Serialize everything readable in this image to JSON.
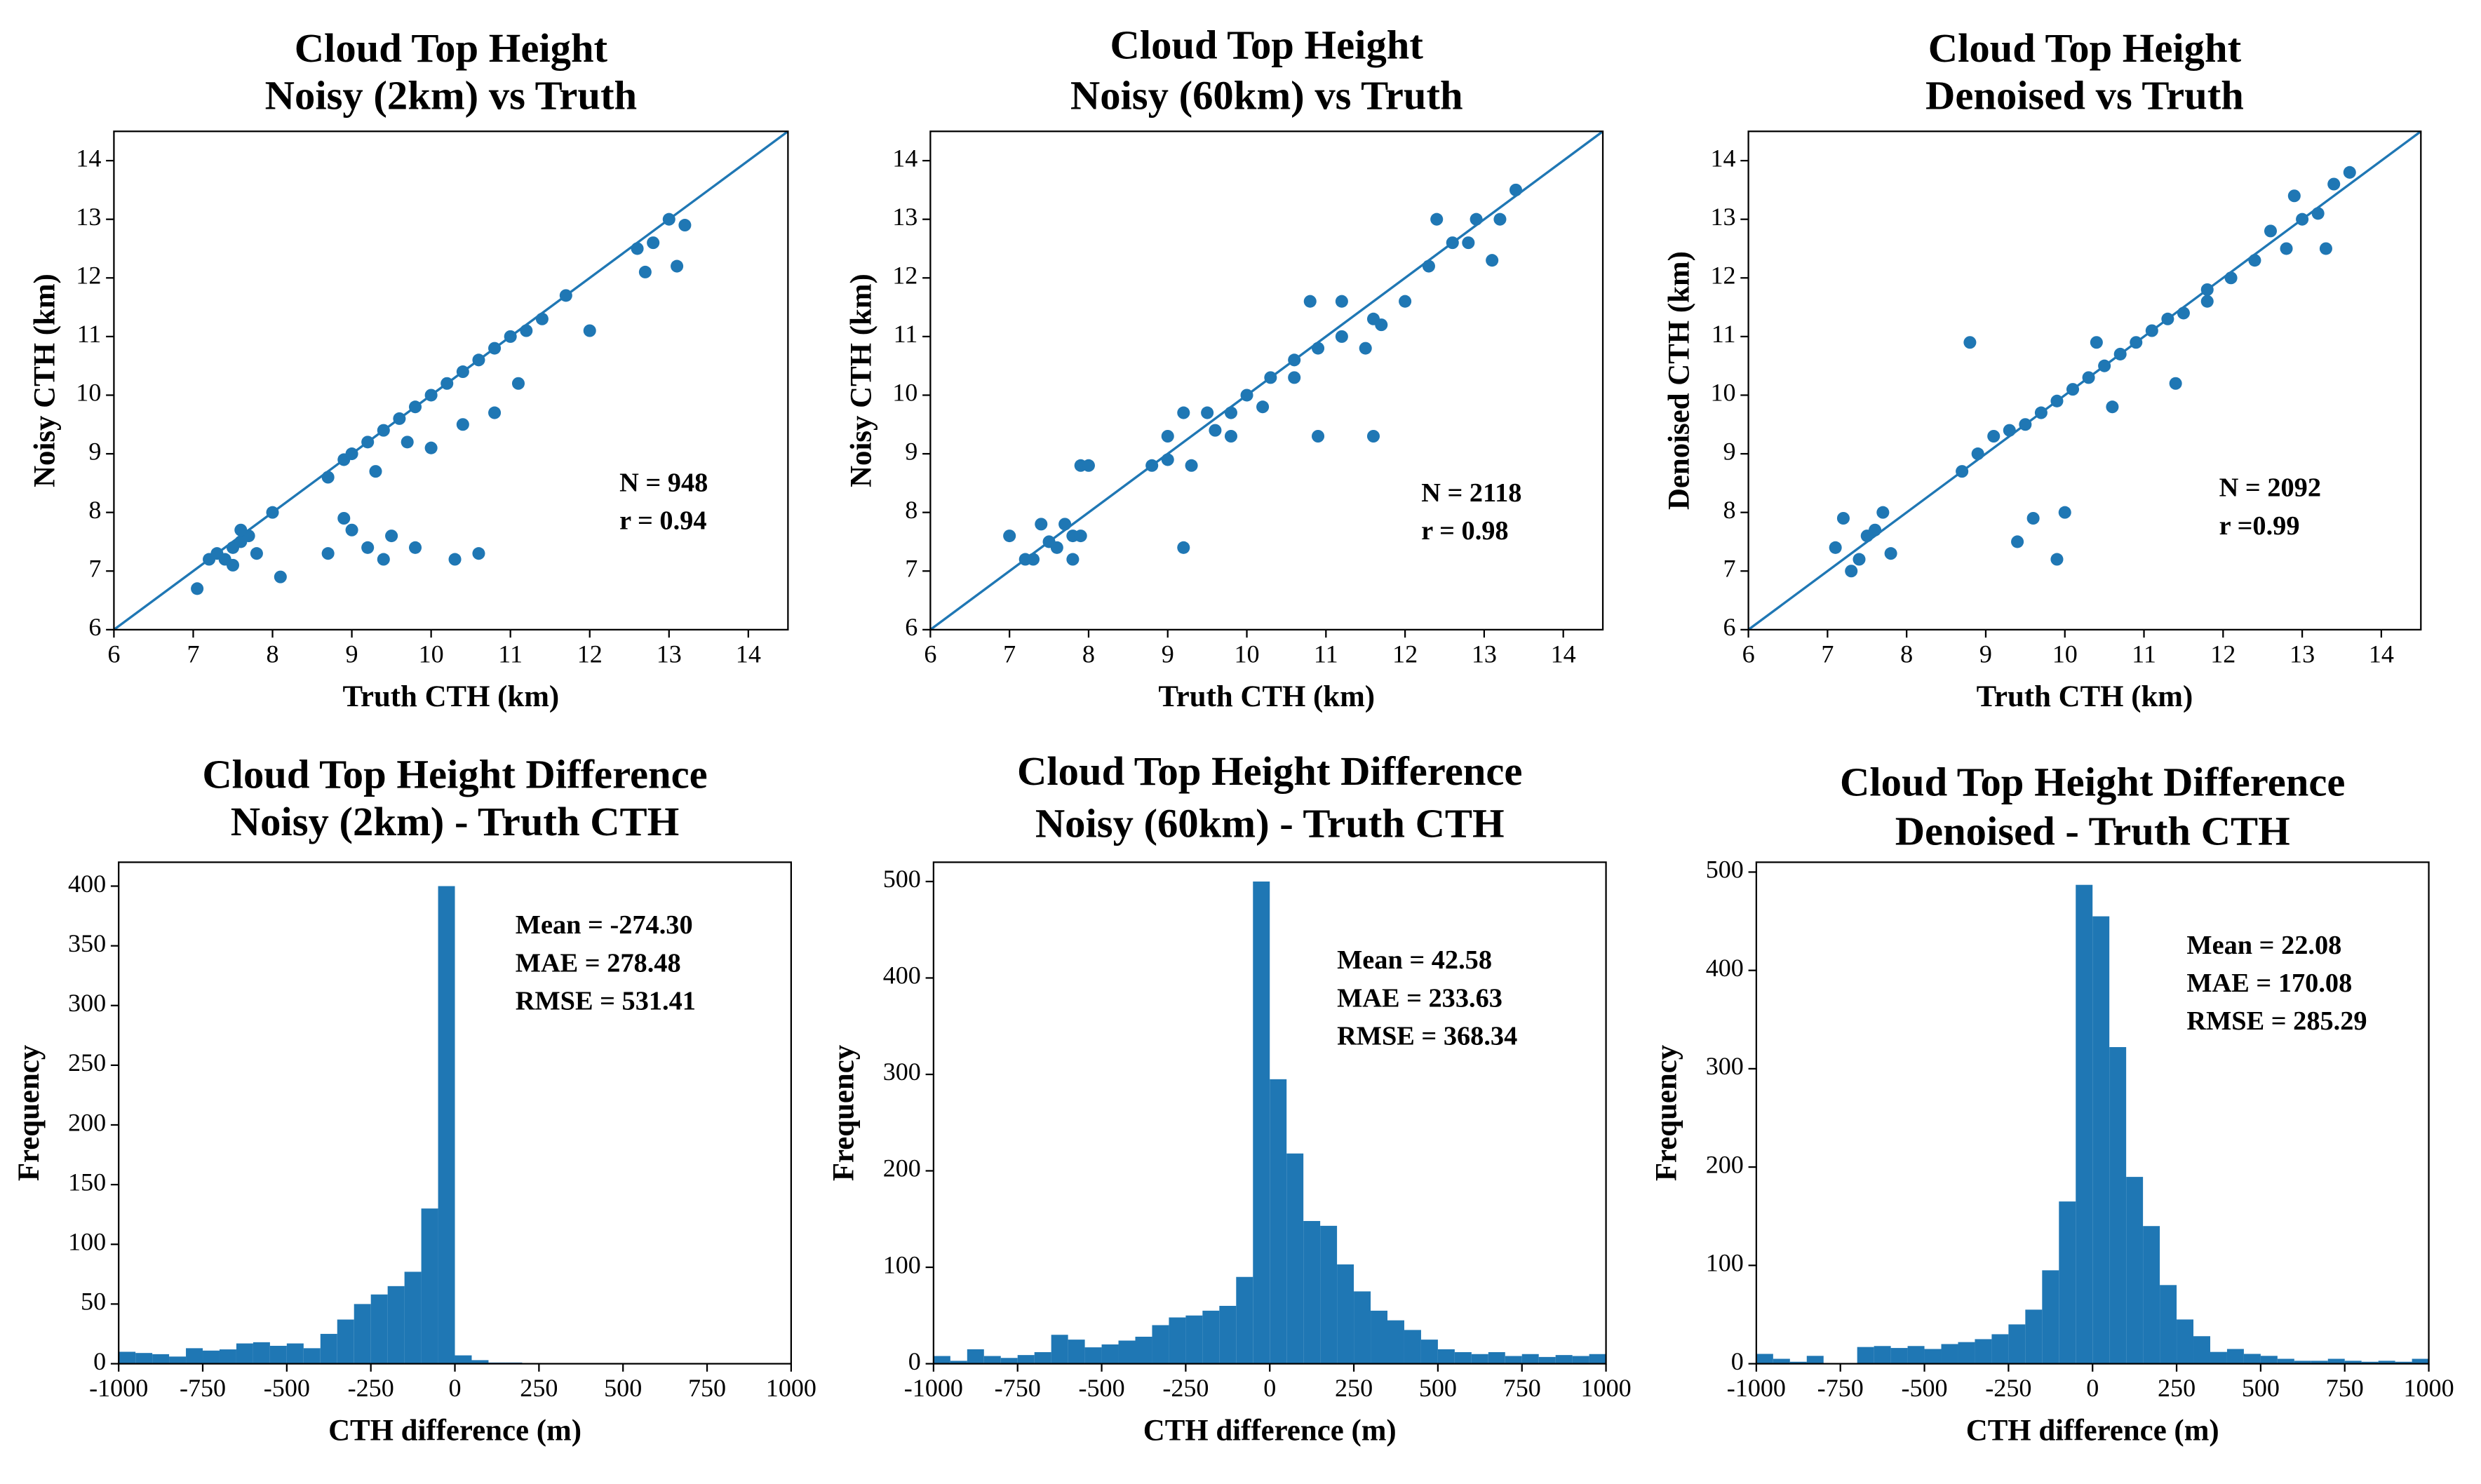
{
  "chart_data": [
    {
      "type": "scatter",
      "title": [
        "Cloud Top Height",
        "Noisy (2km) vs Truth"
      ],
      "xlabel": "Truth CTH (km)",
      "ylabel": "Noisy CTH (km)",
      "color": "#1f77b4",
      "identity_line": true,
      "xlim": [
        6,
        14.5
      ],
      "ylim": [
        6,
        14.5
      ],
      "xticks": [
        6,
        7,
        8,
        9,
        10,
        11,
        12,
        13,
        14
      ],
      "yticks": [
        6,
        7,
        8,
        9,
        10,
        11,
        12,
        13,
        14
      ],
      "annotations": [
        "N = 948",
        "r = 0.94"
      ],
      "x": [
        7.05,
        7.2,
        7.3,
        7.4,
        7.5,
        7.6,
        7.7,
        7.8,
        7.5,
        7.6,
        8.0,
        8.1,
        8.7,
        8.9,
        9.0,
        9.2,
        9.4,
        9.6,
        9.8,
        10.0,
        10.2,
        10.4,
        10.6,
        10.8,
        11.0,
        11.2,
        11.4,
        11.7,
        12.0,
        9.3,
        9.7,
        10.0,
        10.4,
        10.8,
        11.1,
        8.7,
        8.9,
        9.2,
        9.5,
        9.8,
        10.3,
        10.6,
        9.0,
        9.4,
        12.6,
        12.8,
        13.0,
        13.2,
        13.1,
        12.7
      ],
      "y": [
        6.7,
        7.2,
        7.3,
        7.2,
        7.4,
        7.5,
        7.6,
        7.3,
        7.1,
        7.7,
        8.0,
        6.9,
        8.6,
        8.9,
        9.0,
        9.2,
        9.4,
        9.6,
        9.8,
        10.0,
        10.2,
        10.4,
        10.6,
        10.8,
        11.0,
        11.1,
        11.3,
        11.7,
        11.1,
        8.7,
        9.2,
        9.1,
        9.5,
        9.7,
        10.2,
        7.3,
        7.9,
        7.4,
        7.6,
        7.4,
        7.2,
        7.3,
        7.7,
        7.2,
        12.5,
        12.6,
        13.0,
        12.9,
        12.2,
        12.1
      ]
    },
    {
      "type": "scatter",
      "title": [
        "Cloud Top Height",
        "Noisy (60km) vs Truth"
      ],
      "xlabel": "Truth CTH (km)",
      "ylabel": "Noisy CTH (km)",
      "color": "#1f77b4",
      "identity_line": true,
      "xlim": [
        6,
        14.5
      ],
      "ylim": [
        6,
        14.5
      ],
      "xticks": [
        6,
        7,
        8,
        9,
        10,
        11,
        12,
        13,
        14
      ],
      "yticks": [
        6,
        7,
        8,
        9,
        10,
        11,
        12,
        13,
        14
      ],
      "annotations": [
        "N = 2118",
        "r = 0.98"
      ],
      "x": [
        7.0,
        7.2,
        7.4,
        7.6,
        7.8,
        7.3,
        7.5,
        7.7,
        7.9,
        7.9,
        8.0,
        8.8,
        9.0,
        9.2,
        9.5,
        9.8,
        9.0,
        9.3,
        9.6,
        10.0,
        10.3,
        10.6,
        9.8,
        10.2,
        10.6,
        10.9,
        11.2,
        11.6,
        10.8,
        11.2,
        11.5,
        11.7,
        12.0,
        12.3,
        12.6,
        12.9,
        13.2,
        13.4,
        12.4,
        12.8,
        13.1,
        9.2,
        10.9,
        11.6,
        7.8
      ],
      "y": [
        7.6,
        7.2,
        7.8,
        7.4,
        7.6,
        7.2,
        7.5,
        7.8,
        7.6,
        8.8,
        8.8,
        8.8,
        9.3,
        9.7,
        9.7,
        9.7,
        8.9,
        8.8,
        9.4,
        10.0,
        10.3,
        10.6,
        9.3,
        9.8,
        10.3,
        10.8,
        11.0,
        11.3,
        11.6,
        11.6,
        10.8,
        11.2,
        11.6,
        12.2,
        12.6,
        13.0,
        13.0,
        13.5,
        13.0,
        12.6,
        12.3,
        7.4,
        9.3,
        9.3,
        7.2
      ]
    },
    {
      "type": "scatter",
      "title": [
        "Cloud Top Height",
        "Denoised vs Truth"
      ],
      "xlabel": "Truth CTH (km)",
      "ylabel": "Denoised CTH (km)",
      "color": "#1f77b4",
      "identity_line": true,
      "xlim": [
        6,
        14.5
      ],
      "ylim": [
        6,
        14.5
      ],
      "xticks": [
        6,
        7,
        8,
        9,
        10,
        11,
        12,
        13,
        14
      ],
      "yticks": [
        6,
        7,
        8,
        9,
        10,
        11,
        12,
        13,
        14
      ],
      "annotations": [
        "N = 2092",
        "r =0.99"
      ],
      "x": [
        7.1,
        7.2,
        7.4,
        7.6,
        7.8,
        7.3,
        7.5,
        7.7,
        8.7,
        8.9,
        9.1,
        9.3,
        9.5,
        9.7,
        9.9,
        10.1,
        10.3,
        10.5,
        10.7,
        10.9,
        11.1,
        11.3,
        11.5,
        11.8,
        12.1,
        12.4,
        12.6,
        12.8,
        13.0,
        13.2,
        13.4,
        13.6,
        12.9,
        13.3,
        8.8,
        9.4,
        9.6,
        10.0,
        10.6,
        11.4,
        11.8,
        9.9,
        10.4
      ],
      "y": [
        7.4,
        7.9,
        7.2,
        7.7,
        7.3,
        7.0,
        7.6,
        8.0,
        8.7,
        9.0,
        9.3,
        9.4,
        9.5,
        9.7,
        9.9,
        10.1,
        10.3,
        10.5,
        10.7,
        10.9,
        11.1,
        11.3,
        11.4,
        11.8,
        12.0,
        12.3,
        12.8,
        12.5,
        13.0,
        13.1,
        13.6,
        13.8,
        13.4,
        12.5,
        10.9,
        7.5,
        7.9,
        8.0,
        9.8,
        10.2,
        11.6,
        7.2,
        10.9
      ]
    },
    {
      "type": "histogram",
      "title": [
        "Cloud Top Height Difference",
        "Noisy (2km) - Truth CTH"
      ],
      "xlabel": "CTH difference (m)",
      "ylabel": "Frequency",
      "color": "#1f77b4",
      "xlim": [
        -1000,
        1000
      ],
      "ylim": [
        0,
        420
      ],
      "xticks": [
        -1000,
        -750,
        -500,
        -250,
        0,
        250,
        500,
        750,
        1000
      ],
      "yticks": [
        0,
        50,
        100,
        150,
        200,
        250,
        300,
        350,
        400
      ],
      "annotations": [
        "Mean = -274.30",
        "MAE = 278.48",
        "RMSE = 531.41"
      ],
      "bins": [
        -1000,
        -950,
        -900,
        -850,
        -800,
        -750,
        -700,
        -650,
        -600,
        -550,
        -500,
        -450,
        -400,
        -350,
        -300,
        -250,
        -200,
        -150,
        -100,
        -50,
        0,
        50,
        100,
        150,
        200,
        250,
        300,
        350,
        400,
        450,
        500,
        550,
        600,
        650,
        700,
        750,
        800,
        850,
        900,
        950,
        1000
      ],
      "counts": [
        10,
        9,
        8,
        6,
        13,
        11,
        12,
        17,
        18,
        15,
        17,
        13,
        25,
        37,
        50,
        58,
        65,
        77,
        130,
        400,
        7,
        3,
        1,
        1,
        0,
        0,
        0,
        0,
        0,
        0,
        0,
        0,
        0,
        0,
        0,
        0,
        0,
        0,
        0,
        0
      ]
    },
    {
      "type": "histogram",
      "title": [
        "Cloud Top Height Difference",
        "Noisy (60km) - Truth CTH"
      ],
      "xlabel": "CTH difference (m)",
      "ylabel": "Frequency",
      "color": "#1f77b4",
      "xlim": [
        -1000,
        1000
      ],
      "ylim": [
        0,
        520
      ],
      "xticks": [
        -1000,
        -750,
        -500,
        -250,
        0,
        250,
        500,
        750,
        1000
      ],
      "yticks": [
        0,
        100,
        200,
        300,
        400,
        500
      ],
      "annotations": [
        "Mean = 42.58",
        "MAE = 233.63",
        "RMSE = 368.34"
      ],
      "bins": [
        -1000,
        -950,
        -900,
        -850,
        -800,
        -750,
        -700,
        -650,
        -600,
        -550,
        -500,
        -450,
        -400,
        -350,
        -300,
        -250,
        -200,
        -150,
        -100,
        -50,
        0,
        50,
        100,
        150,
        200,
        250,
        300,
        350,
        400,
        450,
        500,
        550,
        600,
        650,
        700,
        750,
        800,
        850,
        900,
        950,
        1000
      ],
      "counts": [
        8,
        3,
        15,
        8,
        6,
        9,
        12,
        30,
        25,
        17,
        20,
        24,
        28,
        40,
        48,
        50,
        55,
        60,
        90,
        500,
        295,
        218,
        148,
        143,
        103,
        75,
        55,
        45,
        35,
        25,
        15,
        12,
        10,
        12,
        8,
        10,
        7,
        9,
        8,
        10
      ]
    },
    {
      "type": "histogram",
      "title": [
        "Cloud Top Height Difference",
        "Denoised - Truth CTH"
      ],
      "xlabel": "CTH difference (m)",
      "ylabel": "Frequency",
      "color": "#1f77b4",
      "xlim": [
        -1000,
        1000
      ],
      "ylim": [
        0,
        510
      ],
      "xticks": [
        -1000,
        -750,
        -500,
        -250,
        0,
        250,
        500,
        750,
        1000
      ],
      "yticks": [
        0,
        100,
        200,
        300,
        400,
        500
      ],
      "annotations": [
        "Mean = 22.08",
        "MAE = 170.08",
        "RMSE = 285.29"
      ],
      "bins": [
        -1000,
        -950,
        -900,
        -850,
        -800,
        -750,
        -700,
        -650,
        -600,
        -550,
        -500,
        -450,
        -400,
        -350,
        -300,
        -250,
        -200,
        -150,
        -100,
        -50,
        0,
        50,
        100,
        150,
        200,
        250,
        300,
        350,
        400,
        450,
        500,
        550,
        600,
        650,
        700,
        750,
        800,
        850,
        900,
        950,
        1000
      ],
      "counts": [
        10,
        5,
        2,
        8,
        0,
        0,
        17,
        18,
        16,
        18,
        15,
        20,
        22,
        25,
        30,
        40,
        55,
        95,
        165,
        487,
        455,
        322,
        190,
        140,
        80,
        45,
        28,
        12,
        15,
        10,
        8,
        5,
        3,
        3,
        5,
        3,
        2,
        3,
        2,
        5
      ]
    }
  ]
}
